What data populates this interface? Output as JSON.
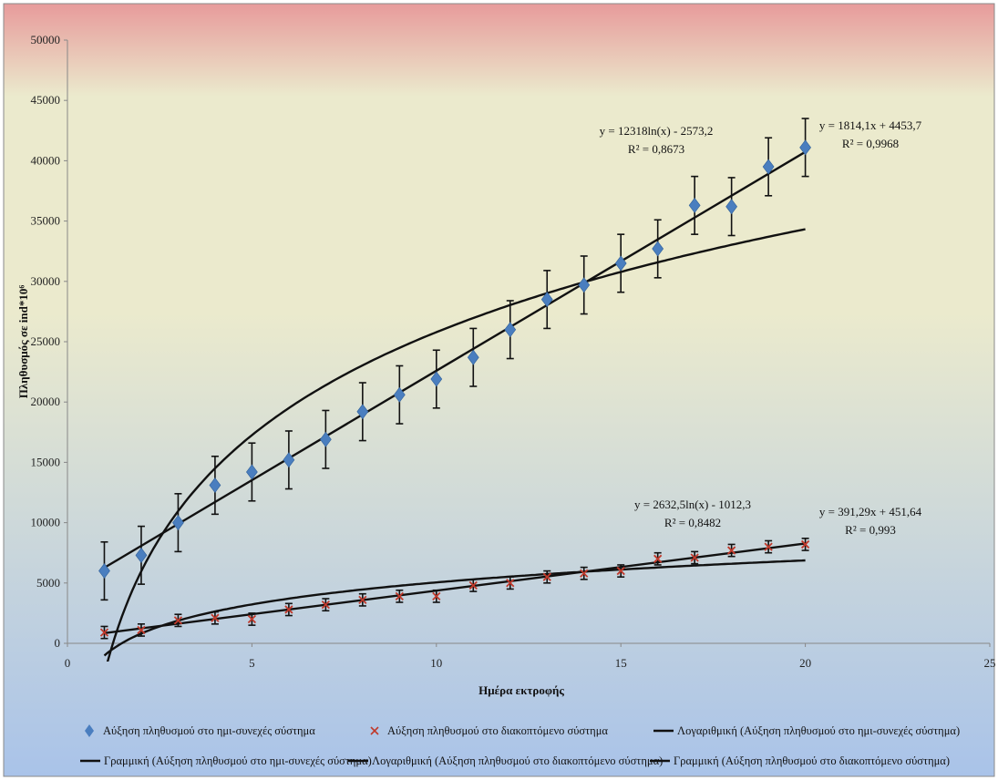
{
  "colors": {
    "series1_marker": "#4a7ebf",
    "series2_marker": "#c0392b",
    "trend_line": "#111111",
    "error_bar": "#111111",
    "bg_top": "#e79b9b",
    "bg_mid": "#ebeacd",
    "bg_bottom": "#a9c3e9"
  },
  "chart_data": {
    "type": "scatter",
    "xlabel": "Ημέρα εκτροφής",
    "ylabel": "Πληθυσμός σε ind*10⁶",
    "xlim": [
      0,
      25
    ],
    "ylim": [
      0,
      50000
    ],
    "x_ticks": [
      "0",
      "5",
      "10",
      "15",
      "20",
      "25"
    ],
    "y_ticks": [
      "0",
      "5000",
      "10000",
      "15000",
      "20000",
      "25000",
      "30000",
      "35000",
      "40000",
      "45000",
      "50000"
    ],
    "grid": false,
    "legend_position": "bottom",
    "series": [
      {
        "name": "Αύξηση πληθυσμού στο ημι-συνεχές σύστημα",
        "marker": "diamond-icon",
        "x": [
          1,
          2,
          3,
          4,
          5,
          6,
          7,
          8,
          9,
          10,
          11,
          12,
          13,
          14,
          15,
          16,
          17,
          18,
          19,
          20
        ],
        "y": [
          6000,
          7300,
          10000,
          13100,
          14200,
          15200,
          16900,
          19200,
          20600,
          21900,
          23700,
          26000,
          28500,
          29700,
          31500,
          32700,
          36300,
          36200,
          39500,
          41100
        ],
        "error": [
          2400,
          2400,
          2400,
          2400,
          2400,
          2400,
          2400,
          2400,
          2400,
          2400,
          2400,
          2400,
          2400,
          2400,
          2400,
          2400,
          2400,
          2400,
          2400,
          2400
        ]
      },
      {
        "name": "Αύξηση πληθυσμού στο διακοπτόμενο σύστημα",
        "marker": "x-icon",
        "x": [
          1,
          2,
          3,
          4,
          5,
          6,
          7,
          8,
          9,
          10,
          11,
          12,
          13,
          14,
          15,
          16,
          17,
          18,
          19,
          20
        ],
        "y": [
          900,
          1100,
          1900,
          2100,
          2000,
          2800,
          3200,
          3600,
          3900,
          3900,
          4800,
          5000,
          5500,
          5800,
          6000,
          7000,
          7100,
          7700,
          8000,
          8200
        ],
        "error": [
          500,
          500,
          500,
          500,
          500,
          500,
          500,
          500,
          500,
          500,
          500,
          500,
          500,
          500,
          500,
          500,
          500,
          500,
          500,
          500
        ]
      }
    ],
    "trendlines": [
      {
        "name": "Λογαριθμική (Αύξηση πληθυσμού στο ημι-συνεχές σύστημα)",
        "kind": "log",
        "a": 12318,
        "b": -2573.2,
        "equation": "y = 12318ln(x) - 2573,2",
        "r2": "R² = 0,8673"
      },
      {
        "name": "Γραμμική (Αύξηση πληθυσμού στο ημι-συνεχές σύστημα)",
        "kind": "linear",
        "a": 1814.1,
        "b": 4453.7,
        "equation": "y = 1814,1x + 4453,7",
        "r2": "R² = 0,9968"
      },
      {
        "name": "Λογαριθμική (Αύξηση πληθυσμού στο διακοπτόμενο σύστημα)",
        "kind": "log",
        "a": 2632.5,
        "b": -1012.3,
        "equation": "y = 2632,5ln(x) - 1012,3",
        "r2": "R² = 0,8482"
      },
      {
        "name": "Γραμμική (Αύξηση πληθυσμού στο διακοπτόμενο σύστημα)",
        "kind": "linear",
        "a": 391.29,
        "b": 451.64,
        "equation": "y = 391,29x + 451,64",
        "r2": "R² = 0,993"
      }
    ]
  }
}
